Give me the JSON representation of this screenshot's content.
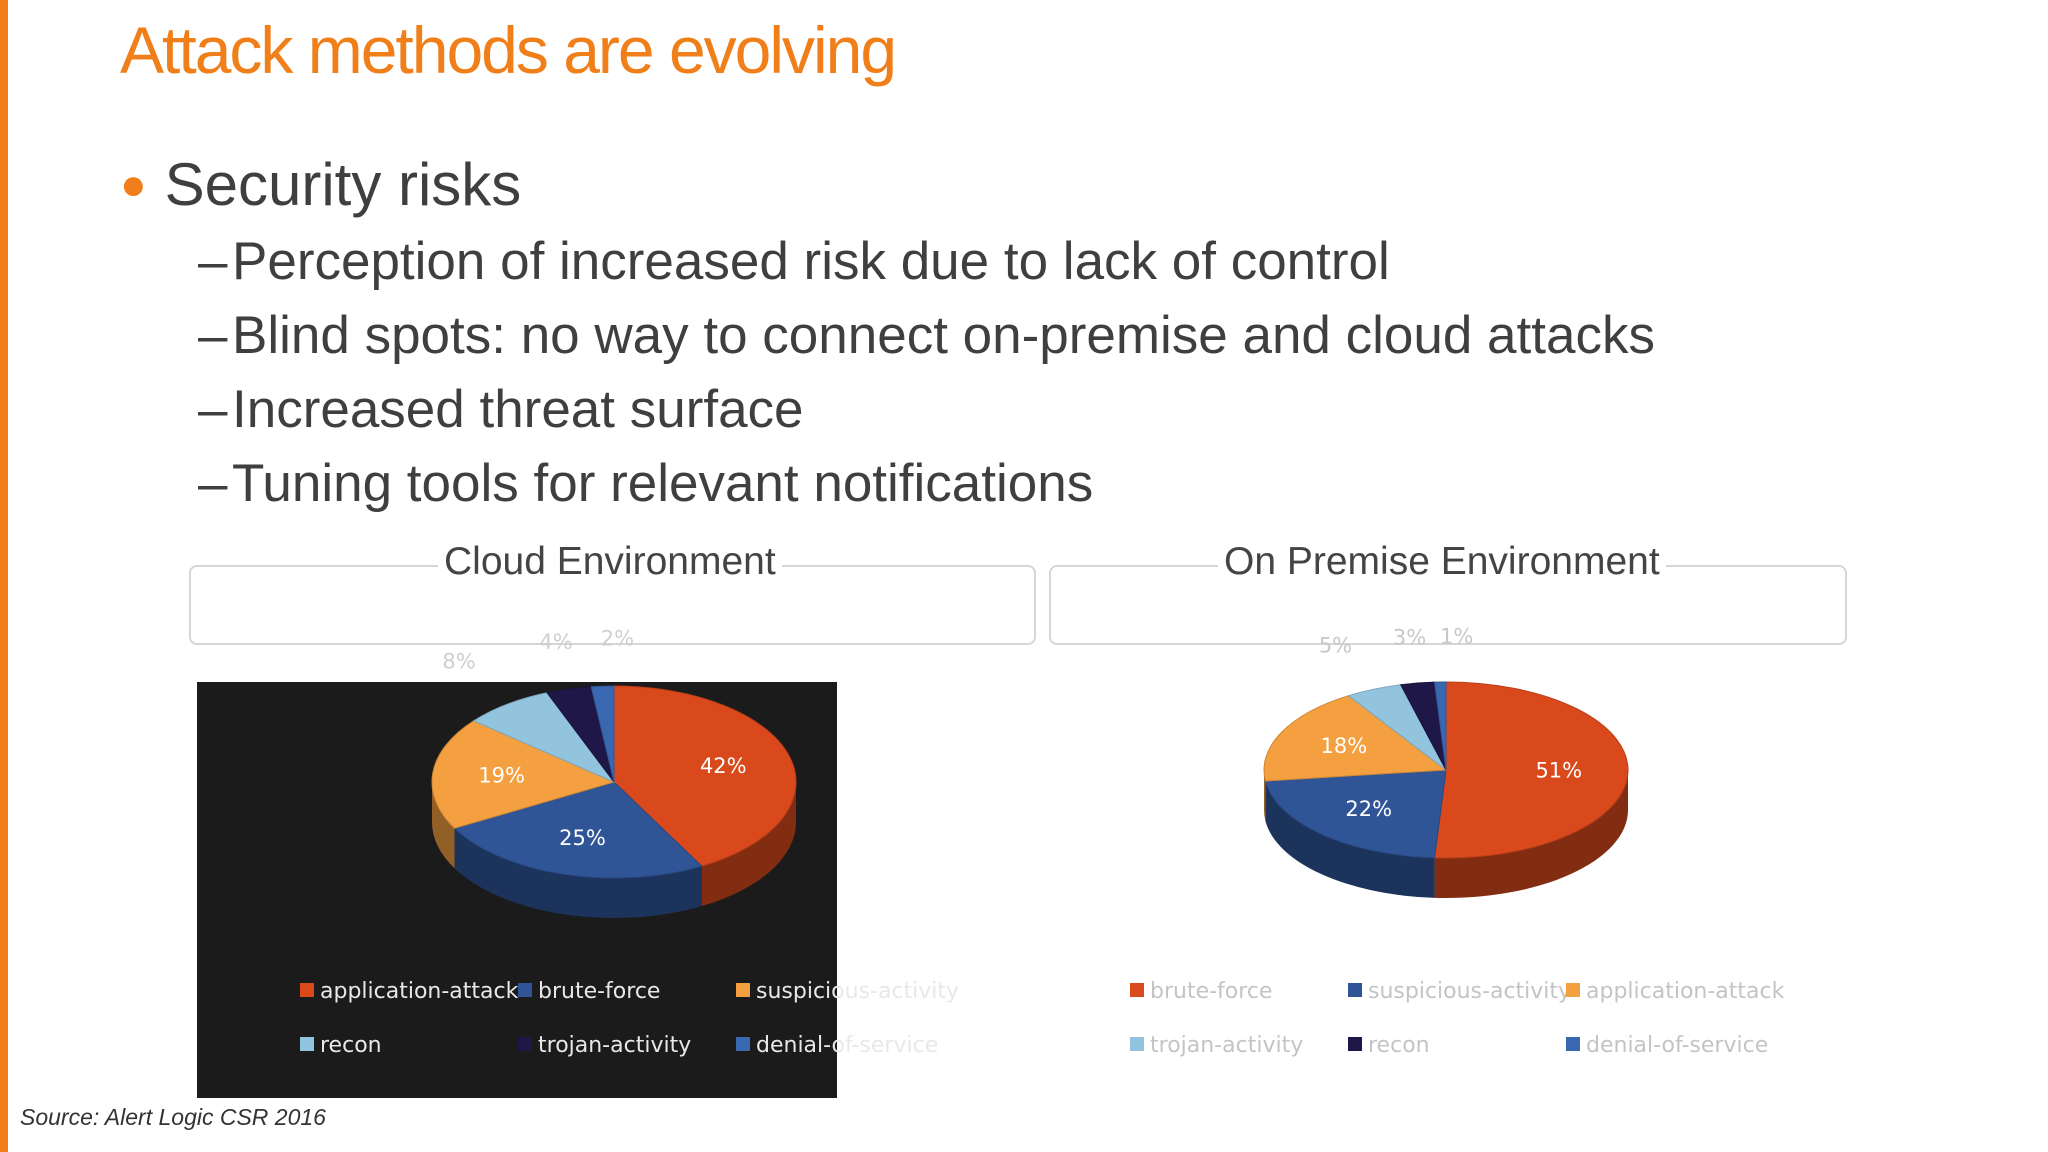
{
  "slide": {
    "title": "Attack methods are evolving",
    "bullet": "Security risks",
    "sub_bullets": [
      "Perception of increased risk due to lack of control",
      "Blind spots: no way to connect on-premise and cloud attacks",
      "Increased threat surface",
      "Tuning tools for relevant notifications"
    ],
    "source": "Source: Alert Logic CSR 2016",
    "accent_color": "#f07f1a"
  },
  "chart_data": [
    {
      "type": "pie",
      "title": "Cloud Environment",
      "slices": [
        {
          "label": "application-attack",
          "value": 42,
          "color": "#d9491c"
        },
        {
          "label": "brute-force",
          "value": 25,
          "color": "#2f5597"
        },
        {
          "label": "suspicious-activity",
          "value": 19,
          "color": "#f4a041"
        },
        {
          "label": "recon",
          "value": 8,
          "color": "#92c4de"
        },
        {
          "label": "trojan-activity",
          "value": 4,
          "color": "#1e1748"
        },
        {
          "label": "denial-of-service",
          "value": 2,
          "color": "#3a68b0"
        }
      ],
      "data_labels": [
        "42%",
        "25%",
        "19%",
        "8%",
        "4%",
        "2%"
      ],
      "legend": [
        "application-attack",
        "brute-force",
        "suspicious-activity",
        "recon",
        "trojan-activity",
        "denial-of-service"
      ],
      "legend_position": "bottom"
    },
    {
      "type": "pie",
      "title": "On Premise Environment",
      "slices": [
        {
          "label": "brute-force",
          "value": 51,
          "color": "#d9491c"
        },
        {
          "label": "suspicious-activity",
          "value": 22,
          "color": "#2f5597"
        },
        {
          "label": "application-attack",
          "value": 18,
          "color": "#f4a041"
        },
        {
          "label": "trojan-activity",
          "value": 5,
          "color": "#92c4de"
        },
        {
          "label": "recon",
          "value": 3,
          "color": "#1e1748"
        },
        {
          "label": "denial-of-service",
          "value": 1,
          "color": "#3a68b0"
        }
      ],
      "data_labels": [
        "51%",
        "22%",
        "18%",
        "5%",
        "3%",
        "1%"
      ],
      "legend": [
        "brute-force",
        "suspicious-activity",
        "application-attack",
        "trojan-activity",
        "recon",
        "denial-of-service"
      ],
      "legend_position": "bottom"
    }
  ]
}
